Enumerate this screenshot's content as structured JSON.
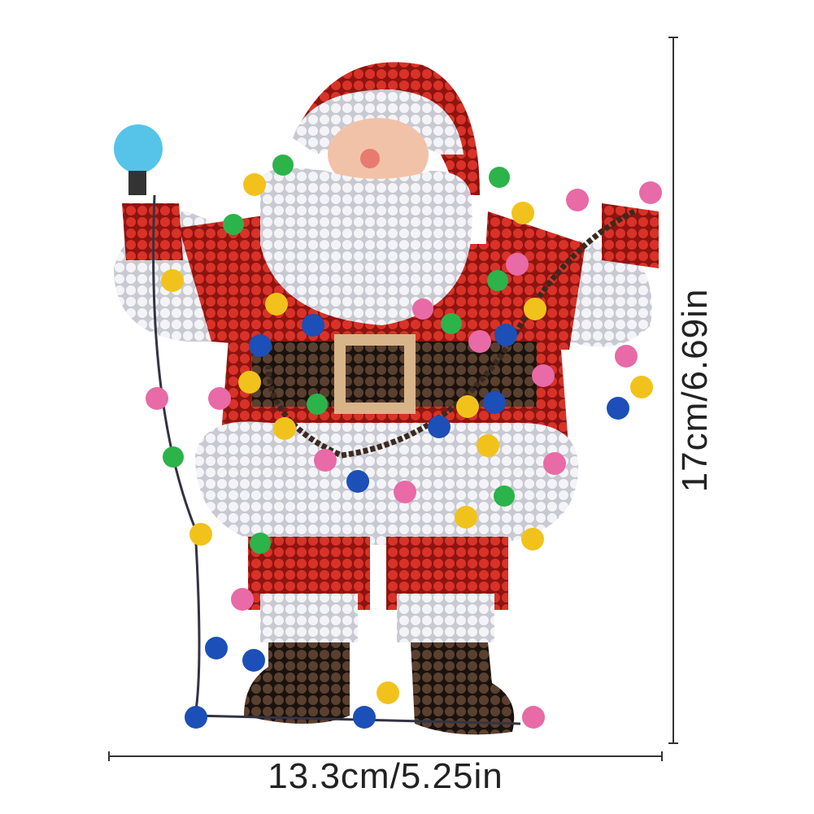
{
  "product": {
    "width_label": "13.3cm/5.25in",
    "height_label": "17cm/6.69in"
  },
  "colors": {
    "red": "#d42a22",
    "white_bead": "#e8e8ee",
    "boot": "#3a2a20",
    "belt_buckle": "#d8b48a",
    "lights": [
      "#f2c21c",
      "#e86aa6",
      "#2cb34a",
      "#1c4fb8",
      "#55c4e8"
    ]
  }
}
